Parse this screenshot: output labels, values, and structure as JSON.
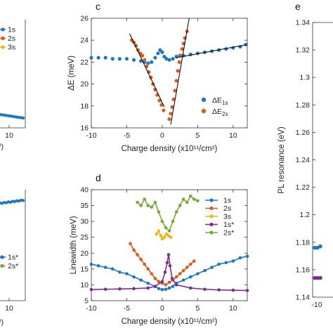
{
  "colors": {
    "blue": "#1f77c4",
    "orange": "#dc5a1e",
    "yellow": "#f0b41e",
    "purple": "#7b2d91",
    "green": "#7aa83a",
    "black": "#111111"
  },
  "left_fragment": {
    "top": {
      "x_tick": "10",
      "x_label_tail": "²)",
      "legend": [
        {
          "name": "1s",
          "color": "#1f77c4"
        },
        {
          "name": "2s",
          "color": "#dc5a1e"
        },
        {
          "name": "3s",
          "color": "#f0b41e"
        }
      ]
    },
    "bottom": {
      "x_tick": "10",
      "x_label_tail": "²)",
      "legend": [
        {
          "name": "1s*",
          "color": "#1f77c4"
        },
        {
          "name": "2s*",
          "color": "#7aa83a"
        }
      ]
    }
  },
  "chart_data": [
    {
      "panel": "c",
      "type": "scatter",
      "xlabel": "Charge density (x10¹¹/cm²)",
      "ylabel": "ΔE (meV)",
      "xlim": [
        -10,
        12
      ],
      "ylim": [
        16,
        26
      ],
      "xticks": [
        "-10",
        "-5",
        "0",
        "5",
        "10"
      ],
      "yticks": [
        "16",
        "18",
        "20",
        "22",
        "24",
        "26"
      ],
      "legend_position": "right",
      "series": [
        {
          "name": "ΔE",
          "sub": "1s",
          "color": "#1f77c4",
          "x": [
            -10,
            -9,
            -8,
            -7,
            -6,
            -5,
            -4,
            -3,
            -2.5,
            -2,
            -1.5,
            -1,
            -0.6,
            -0.3,
            0,
            0.3,
            0.6,
            1,
            1.5,
            2,
            2.5,
            3,
            4,
            5,
            6,
            7,
            8,
            9,
            10,
            11,
            11.8
          ],
          "y": [
            22.4,
            22.4,
            22.4,
            22.3,
            22.3,
            22.3,
            22.2,
            22.1,
            22.0,
            21.9,
            22.0,
            22.4,
            22.8,
            23.1,
            22.9,
            22.5,
            22.3,
            22.2,
            22.3,
            22.5,
            22.6,
            22.6,
            22.7,
            22.8,
            22.9,
            23.0,
            23.1,
            23.2,
            23.3,
            23.4,
            23.6
          ]
        },
        {
          "name": "ΔE",
          "sub": "2s",
          "color": "#dc5a1e",
          "x": [
            -4.3,
            -4.0,
            -3.7,
            -3.4,
            -3.1,
            -2.8,
            -2.5,
            -2.2,
            -1.9,
            -1.6,
            -1.3,
            -1.0,
            -0.7,
            -0.4,
            -0.1,
            0.2,
            1.0,
            1.2,
            1.4,
            1.6,
            1.8,
            2.0,
            2.2,
            2.4,
            2.6,
            2.8,
            3.0,
            3.2,
            3.5
          ],
          "y": [
            24.0,
            23.8,
            23.5,
            23.1,
            22.8,
            22.6,
            22.2,
            21.6,
            21.1,
            20.6,
            20.0,
            19.5,
            19.0,
            18.5,
            18.1,
            17.6,
            16.8,
            17.3,
            17.9,
            18.6,
            19.4,
            20.3,
            21.2,
            22.0,
            22.6,
            23.2,
            23.7,
            24.2,
            24.8
          ]
        }
      ],
      "fit_lines": [
        {
          "x": [
            -4.6,
            0.3
          ],
          "y": [
            24.6,
            17.9
          ]
        },
        {
          "x": [
            1.2,
            3.8
          ],
          "y": [
            16.3,
            26.0
          ]
        },
        {
          "x": [
            2.0,
            12.0
          ],
          "y": [
            22.4,
            23.6
          ]
        }
      ]
    },
    {
      "panel": "d",
      "type": "line",
      "xlabel": "Charge density (x10¹¹/cm²)",
      "ylabel": "Linewidth (meV)",
      "xlim": [
        -10,
        12
      ],
      "ylim": [
        5,
        40
      ],
      "xticks": [
        "-10",
        "-5",
        "0",
        "5",
        "10"
      ],
      "yticks": [
        "5",
        "10",
        "15",
        "20",
        "25",
        "30",
        "35",
        "40"
      ],
      "legend_position": "top-right",
      "series": [
        {
          "name": "1s",
          "color": "#1f77c4",
          "x": [
            -10,
            -9,
            -8,
            -7,
            -6,
            -5,
            -4,
            -3,
            -2,
            -1,
            -0.5,
            0,
            0.5,
            1,
            1.5,
            2,
            3,
            4,
            5,
            6,
            7,
            8,
            9,
            10,
            11,
            12
          ],
          "y": [
            16.5,
            16,
            15.5,
            15,
            14,
            13.5,
            12.5,
            11.5,
            10.5,
            9.5,
            8.8,
            8.5,
            8.6,
            9,
            9.5,
            10.5,
            11.5,
            12.5,
            13.5,
            14.5,
            15.5,
            16.5,
            17,
            17.5,
            18.5,
            19
          ]
        },
        {
          "name": "2s",
          "color": "#dc5a1e",
          "x": [
            -4.5,
            -4,
            -3.5,
            -3,
            -2.5,
            -2,
            -1.5,
            -1,
            -0.5,
            0,
            0.5,
            1,
            1.5,
            2,
            2.5,
            3,
            3.5,
            4,
            4.5
          ],
          "y": [
            23,
            21,
            19.5,
            18,
            16.5,
            15,
            13.5,
            12,
            11,
            10.5,
            10,
            10.8,
            11.5,
            12.5,
            13.5,
            14.5,
            15.5,
            16.5,
            17.5
          ]
        },
        {
          "name": "3s",
          "color": "#f0b41e",
          "x": [
            -0.8,
            -0.5,
            -0.2,
            0,
            0.3,
            0.6,
            0.9,
            1.2
          ],
          "y": [
            26,
            27,
            25.5,
            24.5,
            25,
            26,
            25.5,
            25
          ]
        },
        {
          "name": "1s*",
          "color": "#7b2d91",
          "x": [
            -10,
            -8,
            -6,
            -4,
            -2,
            -1,
            0,
            0.4,
            0.7,
            0.9,
            1.1,
            1.4,
            2,
            4,
            6,
            8,
            10,
            12
          ],
          "y": [
            8.5,
            8.6,
            8.7,
            8.8,
            9,
            9.5,
            11,
            14,
            17,
            19.5,
            16,
            12,
            10,
            9,
            8.6,
            8.4,
            8.3,
            8.2
          ]
        },
        {
          "name": "2s*",
          "color": "#7aa83a",
          "x": [
            -3.5,
            -3,
            -2.5,
            -2,
            -1.5,
            -1,
            -0.5,
            0,
            0.5,
            1,
            1.5,
            2,
            2.5,
            3,
            3.5,
            4,
            4.5,
            5
          ],
          "y": [
            36,
            35,
            37,
            35,
            34.5,
            36,
            33,
            30,
            28,
            27,
            30,
            33,
            35,
            37,
            36,
            38,
            37,
            36.5
          ]
        }
      ]
    },
    {
      "panel": "e",
      "type": "scatter",
      "xlabel": "",
      "ylabel": "PL resonance (eV)",
      "xlim": [
        -10,
        12
      ],
      "ylim": [
        1.14,
        1.34
      ],
      "xticks": [
        "-10"
      ],
      "yticks": [
        "1.14",
        "1.16",
        "1.18",
        "1.2",
        "1.22",
        "1.24",
        "1.26",
        "1.28",
        "1.3",
        "1.32",
        "1.34"
      ],
      "series": [
        {
          "name": "",
          "color": "#1f77c4",
          "x": [
            -10,
            -9.5,
            -9
          ],
          "y": [
            1.176,
            1.176,
            1.177
          ]
        },
        {
          "name": "",
          "color": "#7b2d91",
          "x": [
            -10,
            -9.5,
            -9
          ],
          "y": [
            1.154,
            1.154,
            1.154
          ]
        }
      ]
    }
  ]
}
